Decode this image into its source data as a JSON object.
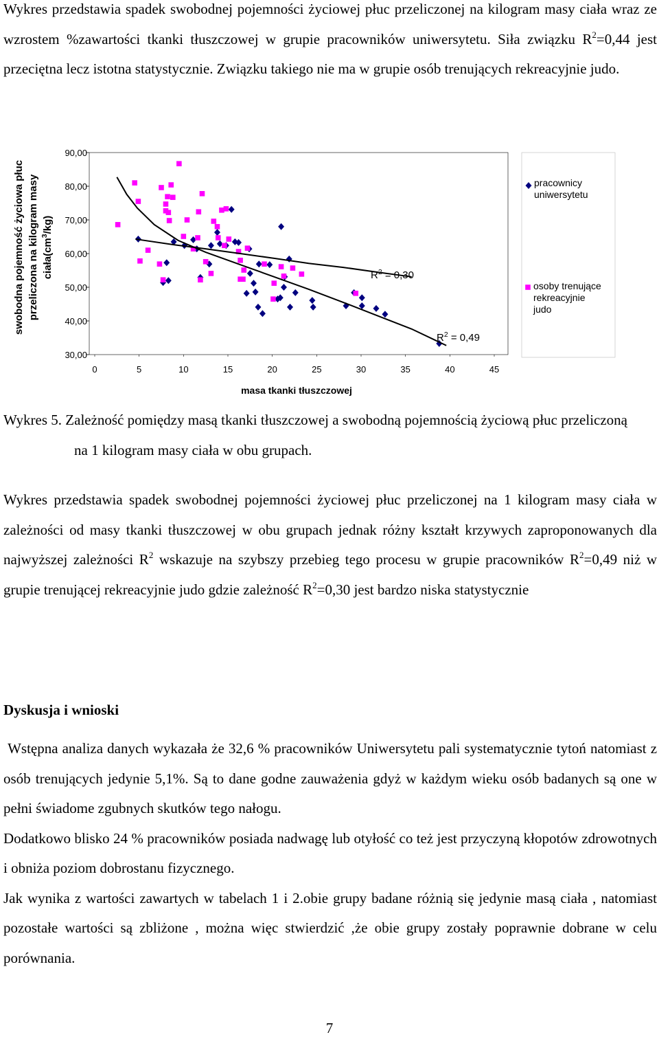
{
  "paragraph_1": [
    "Wykres przedstawia spadek swobodnej pojemności życiowej płuc przeliczonej na kilogram masy ciała wraz ze wzrostem %zawartości tkanki tłuszczowej w grupie pracowników uniwersytetu. Siła związku R",
    {
      "sup": "2"
    },
    "=0,44 jest przeciętna lecz istotna statystycznie. Związku takiego nie ma w grupie osób trenujących rekreacyjnie judo."
  ],
  "chart_data": {
    "type": "scatter",
    "xlabel": "masa tkanki tłuszczowej",
    "ylabel": [
      [
        "swobodna pojemność życiowa płuc"
      ],
      [
        "przeliczona na kilogram masy"
      ],
      [
        "ciała(cm",
        {
          "sup": "3"
        },
        "/kg)"
      ]
    ],
    "xlim": [
      0,
      45
    ],
    "ylim": [
      30,
      90
    ],
    "xticks": [
      0,
      5,
      10,
      15,
      20,
      25,
      30,
      35,
      40,
      45
    ],
    "yticks": [
      {
        "value": 30,
        "label": "30,00"
      },
      {
        "value": 40,
        "label": "40,00"
      },
      {
        "value": 50,
        "label": "50,00"
      },
      {
        "value": 60,
        "label": "60,00"
      },
      {
        "value": 70,
        "label": "70,00"
      },
      {
        "value": 80,
        "label": "80,00"
      },
      {
        "value": 90,
        "label": "90,00"
      }
    ],
    "grid": false,
    "legend": "right",
    "series": [
      {
        "name": "pracownicy uniwersytetu",
        "color": "#000080",
        "marker": "diamond",
        "x": [
          4.9,
          8.1,
          7.7,
          8.3,
          8.9,
          10.1,
          11.1,
          11.5,
          11.9,
          12.9,
          13.1,
          13.8,
          14.1,
          14.8,
          15.4,
          15.8,
          17.1,
          17.4,
          17.5,
          17.9,
          18.1,
          18.4,
          18.9,
          18.5,
          19.7,
          20.6,
          20.9,
          21.0,
          21.3,
          21.4,
          21.9,
          22.0,
          22.6,
          24.5,
          24.6,
          28.3,
          29.2,
          30.1,
          30.1,
          31.7,
          32.7,
          38.8,
          16.2
        ],
        "values": [
          64.3,
          57.3,
          51.4,
          52.0,
          63.5,
          62.4,
          64.1,
          61.4,
          52.9,
          56.9,
          62.4,
          66.3,
          62.9,
          62.4,
          73.1,
          63.5,
          48.2,
          61.4,
          54.1,
          51.2,
          48.6,
          44.1,
          42.2,
          56.9,
          56.7,
          46.5,
          46.9,
          68.0,
          50.0,
          53.1,
          58.4,
          44.1,
          48.4,
          46.1,
          44.1,
          44.5,
          48.4,
          46.9,
          44.5,
          43.7,
          42.0,
          33.3,
          63.3
        ]
      },
      {
        "name": "osoby trenujące rekreacyjnie judo",
        "color": "#ff00ff",
        "marker": "square",
        "x": [
          2.6,
          4.5,
          4.9,
          5.1,
          6.0,
          7.3,
          7.5,
          7.7,
          8.0,
          8.0,
          8.2,
          8.3,
          8.4,
          8.6,
          8.8,
          9.5,
          10.0,
          10.4,
          11.1,
          11.6,
          11.7,
          11.9,
          12.1,
          12.5,
          13.1,
          13.4,
          13.8,
          13.9,
          14.3,
          14.6,
          14.8,
          15.1,
          16.2,
          16.4,
          16.4,
          16.7,
          16.8,
          17.2,
          19.1,
          20.1,
          20.2,
          21.0,
          21.3,
          22.3,
          23.3,
          29.4
        ],
        "values": [
          68.6,
          81.0,
          75.5,
          57.8,
          61.0,
          56.9,
          79.6,
          52.2,
          72.7,
          74.7,
          76.9,
          72.2,
          69.8,
          80.4,
          76.7,
          86.7,
          65.1,
          70.0,
          61.4,
          64.7,
          72.4,
          52.2,
          77.8,
          57.6,
          54.1,
          69.6,
          68.0,
          64.7,
          72.9,
          62.4,
          73.3,
          64.3,
          60.6,
          58.0,
          52.4,
          52.4,
          55.1,
          61.6,
          56.9,
          46.5,
          51.2,
          56.1,
          53.3,
          55.7,
          53.9,
          48.2
        ]
      }
    ],
    "trendlines": [
      {
        "color": "#000000",
        "x": [
          2.5,
          3.6,
          4.8,
          6.7,
          9.4,
          12.5,
          16.4,
          20.2,
          24.1,
          28.0,
          31.8,
          35.7,
          39.6
        ],
        "y": [
          82.7,
          77.6,
          73.5,
          68.6,
          63.9,
          60.4,
          56.7,
          53.1,
          49.4,
          45.5,
          41.6,
          37.6,
          32.7
        ]
      },
      {
        "color": "#000000",
        "x": [
          4.6,
          8.7,
          12.5,
          16.4,
          20.2,
          24.1,
          28.0,
          31.8,
          35.7
        ],
        "y": [
          64.3,
          62.7,
          61.4,
          60.0,
          58.6,
          57.1,
          55.9,
          54.5,
          53.1
        ]
      }
    ],
    "annotations": [
      [
        "R",
        {
          "sup": "2"
        },
        " = 0,30"
      ],
      [
        "R",
        {
          "sup": "2"
        },
        " = 0,49"
      ]
    ]
  },
  "caption": "Wykres 5. Zależność pomiędzy masą tkanki tłuszczowej a swobodną pojemnością życiową płuc przeliczoną na 1 kilogram masy ciała w obu grupach.",
  "paragraph_2": [
    "Wykres przedstawia spadek swobodnej pojemności życiowej płuc przeliczonej na 1 kilogram masy ciała w zależności od masy tkanki tłuszczowej w obu grupach jednak różny kształt krzywych zaproponowanych dla najwyższej zależności R",
    {
      "sup": "2"
    },
    " wskazuje na szybszy przebieg tego procesu w grupie pracowników R",
    {
      "sup": "2"
    },
    "=0,49 niż w grupie trenującej rekreacyjnie judo gdzie zależność R",
    {
      "sup": "2"
    },
    "=0,30 jest bardzo niska statystycznie"
  ],
  "heading": "Dyskusja i wnioski",
  "paragraphs": [
    " Wstępna analiza danych wykazała że 32,6 % pracowników Uniwersytetu pali systematycznie tytoń natomiast z osób trenujących jedynie 5,1%. Są to dane godne zauważenia gdyż w każdym wieku osób badanych są one w pełni świadome zgubnych skutków tego nałogu.",
    "Dodatkowo blisko 24 % pracowników posiada nadwagę lub otyłość co też jest przyczyną kłopotów zdrowotnych i obniża poziom dobrostanu fizycznego.",
    "Jak wynika z wartości zawartych w tabelach 1 i 2.obie grupy badane różnią się jedynie masą ciała , natomiast pozostałe wartości są zbliżone , można więc stwierdzić ,że obie grupy zostały poprawnie dobrane w celu porównania."
  ],
  "page_number": "7"
}
